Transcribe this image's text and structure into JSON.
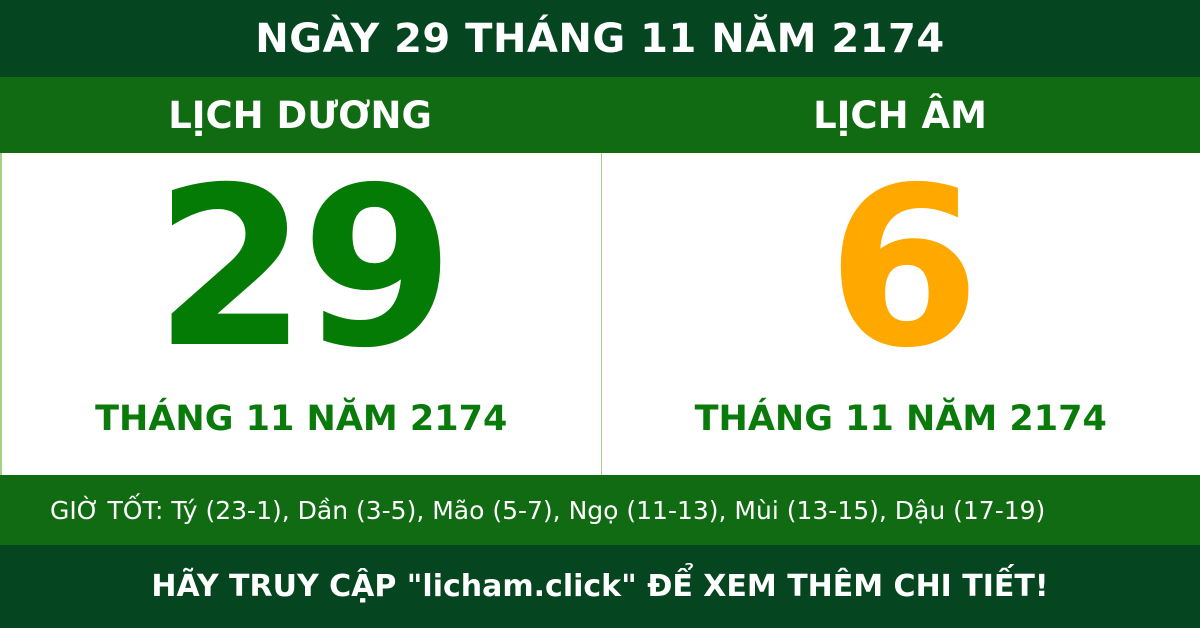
{
  "title": "NGÀY 29 THÁNG 11 NĂM 2174",
  "solar": {
    "heading": "LỊCH DƯƠNG",
    "day": "29",
    "month_year": "THÁNG 11 NĂM 2174"
  },
  "lunar": {
    "heading": "LỊCH ÂM",
    "day": "6",
    "month_year": "THÁNG 11 NĂM 2174"
  },
  "good_hours": "GIỜ TỐT: Tý (23-1), Dần (3-5), Mão (5-7), Ngọ (11-13), Mùi (13-15), Dậu (17-19)",
  "footer": "HÃY TRUY CẬP \"licham.click\" ĐỂ XEM THÊM CHI TIẾT!",
  "colors": {
    "dark_green": "#05451f",
    "band_green": "#116b12",
    "solar_day": "#047b04",
    "lunar_day": "#ffa800"
  }
}
